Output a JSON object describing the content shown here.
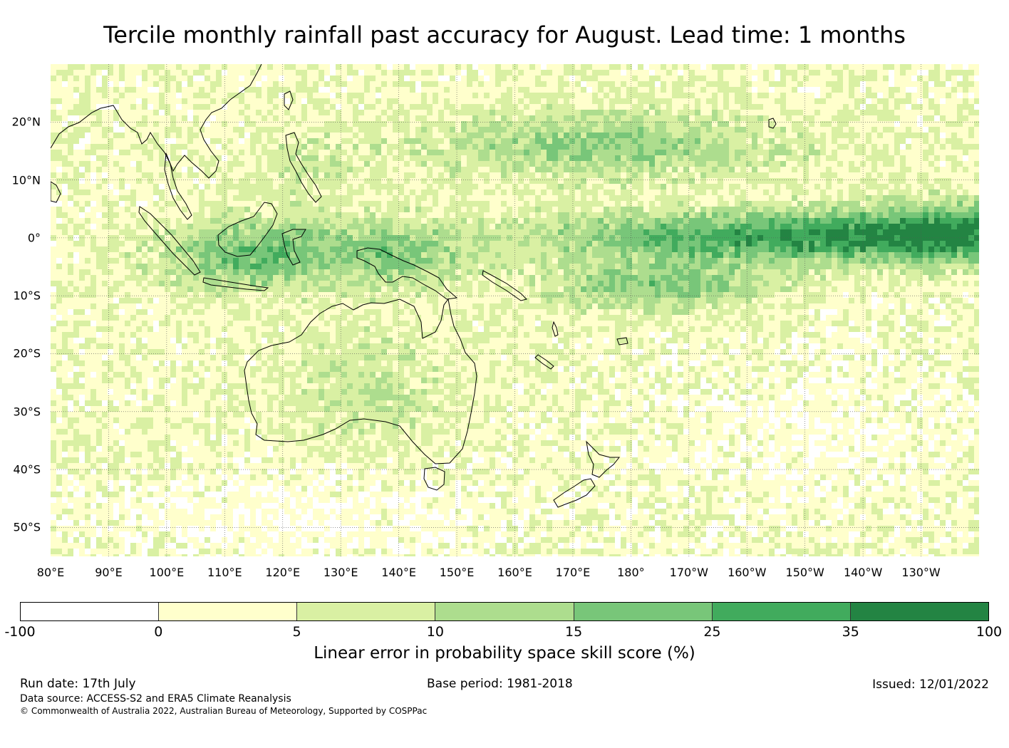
{
  "title": "Tercile monthly rainfall past accuracy for August. Lead time: 1 months",
  "map": {
    "lon_labels": [
      "80°E",
      "90°E",
      "100°E",
      "110°E",
      "120°E",
      "130°E",
      "140°E",
      "150°E",
      "160°E",
      "170°E",
      "180°",
      "170°W",
      "160°W",
      "150°W",
      "140°W",
      "130°W"
    ],
    "lat_labels": [
      "20°N",
      "10°N",
      "0°",
      "10°S",
      "20°S",
      "30°S",
      "40°S",
      "50°S"
    ],
    "lon_range_deg_east": [
      80,
      240
    ],
    "lat_range_deg": [
      -55,
      30
    ],
    "coastline_color": "#000000",
    "gridline_style": "dotted"
  },
  "colorbar": {
    "title": "Linear error in probability space skill score (%)",
    "ticks": [
      "-100",
      "0",
      "5",
      "10",
      "15",
      "25",
      "35",
      "100"
    ],
    "colors": [
      "#ffffff",
      "#ffffcc",
      "#d9f0a3",
      "#addd8e",
      "#78c679",
      "#41ab5d",
      "#238443"
    ]
  },
  "footer": {
    "run_date": "Run date: 17th July",
    "base_period": "Base period: 1981-2018",
    "issued": "Issued: 12/01/2022",
    "data_source": "Data source: ACCESS-S2 and ERA5 Climate Reanalysis",
    "copyright": "© Commonwealth of Australia 2022, Australian Bureau of Meteorology, Supported by COSPPac"
  }
}
